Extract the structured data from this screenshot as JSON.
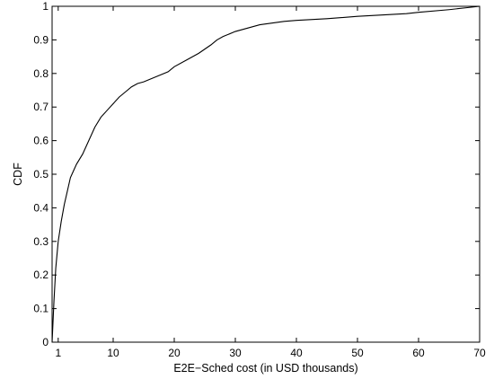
{
  "chart_data": {
    "type": "line",
    "xlabel": "E2E−Sched cost (in USD thousands)",
    "ylabel": "CDF",
    "xlim": [
      0,
      70
    ],
    "ylim": [
      0,
      1
    ],
    "xticks": [
      1,
      10,
      20,
      30,
      40,
      50,
      60,
      70
    ],
    "xtick_labels": [
      "1",
      "10",
      "20",
      "30",
      "40",
      "50",
      "60",
      "70"
    ],
    "yticks": [
      0,
      0.1,
      0.2,
      0.3,
      0.4,
      0.5,
      0.6,
      0.7,
      0.8,
      0.9,
      1
    ],
    "ytick_labels": [
      "0",
      "0.1",
      "0.2",
      "0.3",
      "0.4",
      "0.5",
      "0.6",
      "0.7",
      "0.8",
      "0.9",
      "1"
    ],
    "grid": false,
    "series": [
      {
        "x": [
          0,
          0.3,
          0.6,
          1,
          1.5,
          2,
          2.5,
          3,
          3.5,
          4,
          5,
          6,
          7,
          8,
          9,
          10,
          11,
          12,
          13,
          14,
          15,
          17,
          19,
          20,
          22,
          24,
          26,
          27,
          28,
          30,
          32,
          34,
          36,
          38,
          40,
          45,
          50,
          55,
          58,
          60,
          65,
          68,
          70
        ],
        "y": [
          0.0,
          0.12,
          0.22,
          0.3,
          0.36,
          0.41,
          0.45,
          0.49,
          0.51,
          0.53,
          0.56,
          0.6,
          0.64,
          0.67,
          0.69,
          0.71,
          0.73,
          0.745,
          0.76,
          0.77,
          0.775,
          0.79,
          0.805,
          0.82,
          0.84,
          0.86,
          0.885,
          0.9,
          0.91,
          0.925,
          0.935,
          0.945,
          0.95,
          0.955,
          0.958,
          0.963,
          0.97,
          0.975,
          0.978,
          0.982,
          0.99,
          0.996,
          1.0
        ]
      }
    ]
  }
}
